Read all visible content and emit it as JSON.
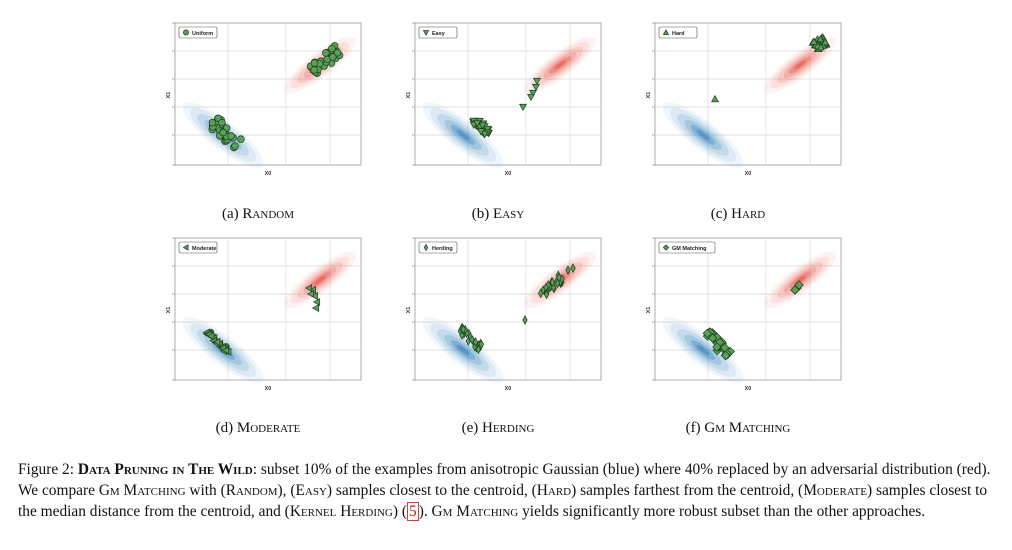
{
  "figure": {
    "panels": [
      {
        "id": "a",
        "legend": "Uniform",
        "marker": "circle",
        "selection": "random",
        "caption_prefix": "(a) ",
        "caption_name": "Random"
      },
      {
        "id": "b",
        "legend": "Easy",
        "marker": "triangle-down",
        "selection": "easy",
        "caption_prefix": "(b) ",
        "caption_name": "Easy"
      },
      {
        "id": "c",
        "legend": "Hard",
        "marker": "triangle-up",
        "selection": "hard",
        "caption_prefix": "(c) ",
        "caption_name": "Hard"
      },
      {
        "id": "d",
        "legend": "Moderate",
        "marker": "triangle-left",
        "selection": "moderate",
        "caption_prefix": "(d) ",
        "caption_name": "Moderate"
      },
      {
        "id": "e",
        "legend": "Herding",
        "marker": "diamond-thin",
        "selection": "herding",
        "caption_prefix": "(e) ",
        "caption_name": "Herding"
      },
      {
        "id": "f",
        "legend": "GM Matching",
        "marker": "diamond",
        "selection": "gm",
        "caption_prefix": "(f) ",
        "caption_name": "Gm Matching"
      }
    ],
    "xlabel": "X0",
    "ylabel": "X1",
    "colors": {
      "clean": "#2b7bba",
      "adversarial": "#e8453c",
      "marker_fill": "#5aa05a",
      "marker_edge": "#1d3d1d"
    }
  },
  "caption": {
    "label": "Figure 2: ",
    "title": "Data Pruning in The Wild",
    "text_1": ": subset 10% of the examples from anisotropic Gaussian (blue) where 40% replaced by an adversarial distribution (red). We compare ",
    "gm_1": "Gm Matching",
    "text_2": " with (",
    "random": "Random",
    "text_3": "), (",
    "easy": "Easy",
    "text_4": ") samples closest to the centroid, (",
    "hard": "Hard",
    "text_5": ") samples farthest from the centroid, (",
    "moderate": "Moderate",
    "text_6": ") samples closest to the median distance from the centroid, and (",
    "kernel": "Kernel Herding",
    "text_7": ") (",
    "ref": "5",
    "text_8": "). ",
    "gm_2": "Gm Matching",
    "text_9": " yields significantly more robust subset than the other approaches."
  }
}
